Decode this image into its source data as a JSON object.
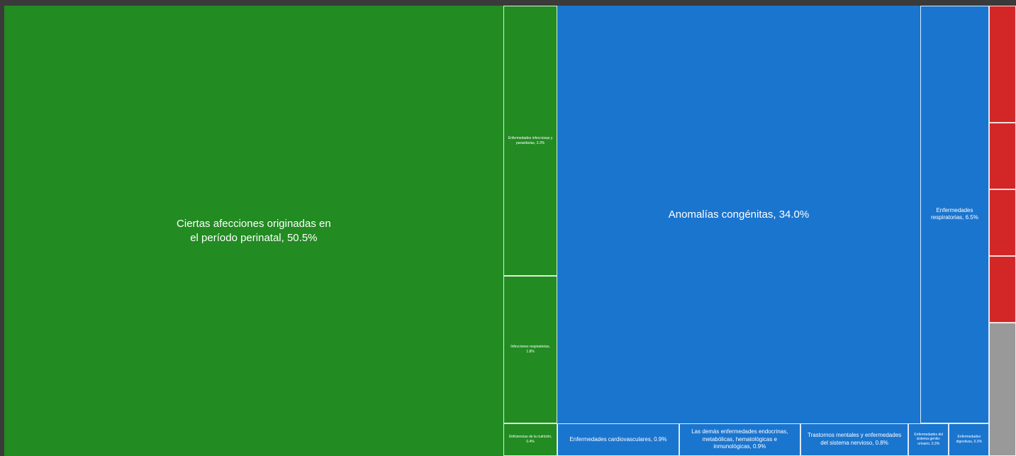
{
  "chart_data": {
    "type": "treemap",
    "title": "",
    "colors": {
      "green": "#228b22",
      "blue": "#1a75cf",
      "red": "#d32626",
      "gray": "#999999",
      "border": "#ffffff"
    },
    "groups": [
      {
        "color": "green",
        "items": [
          {
            "label": "Ciertas afecciones originadas en el período perinatal, 50.5%",
            "value": 50.5
          },
          {
            "label": "Enfermedades infecciosas y parasitarias, 3.3%",
            "value": 3.3
          },
          {
            "label": "Infecciones respiratorias, 1.8%",
            "value": 1.8
          },
          {
            "label": "Deficiencias de la nutrición, 0.4%",
            "value": 0.4
          }
        ]
      },
      {
        "color": "blue",
        "items": [
          {
            "label": "Anomalías congénitas, 34.0%",
            "value": 34.0
          },
          {
            "label": "Enfermedades respiratorias, 6.5%",
            "value": 6.5
          },
          {
            "label": "Enfermedades cardiovasculares, 0.9%",
            "value": 0.9
          },
          {
            "label": "Las demás enfermedades endocrinas, metabólicas, hematológicas e inmunológicas, 0.9%",
            "value": 0.9
          },
          {
            "label": "Trastornos mentales y enfermedades del sistema nervioso, 0.8%",
            "value": 0.8
          },
          {
            "label": "Enfermedades del sistema genito-urinario, 0.3%",
            "value": 0.3
          },
          {
            "label": "Enfermedades digestivas, 0.3%",
            "value": 0.3
          }
        ]
      },
      {
        "color": "red",
        "items": [
          {
            "value": 0.7
          },
          {
            "value": 0.4
          },
          {
            "value": 0.4
          },
          {
            "value": 0.4
          }
        ]
      },
      {
        "color": "gray",
        "items": [
          {
            "value": 0.8
          }
        ]
      }
    ]
  }
}
